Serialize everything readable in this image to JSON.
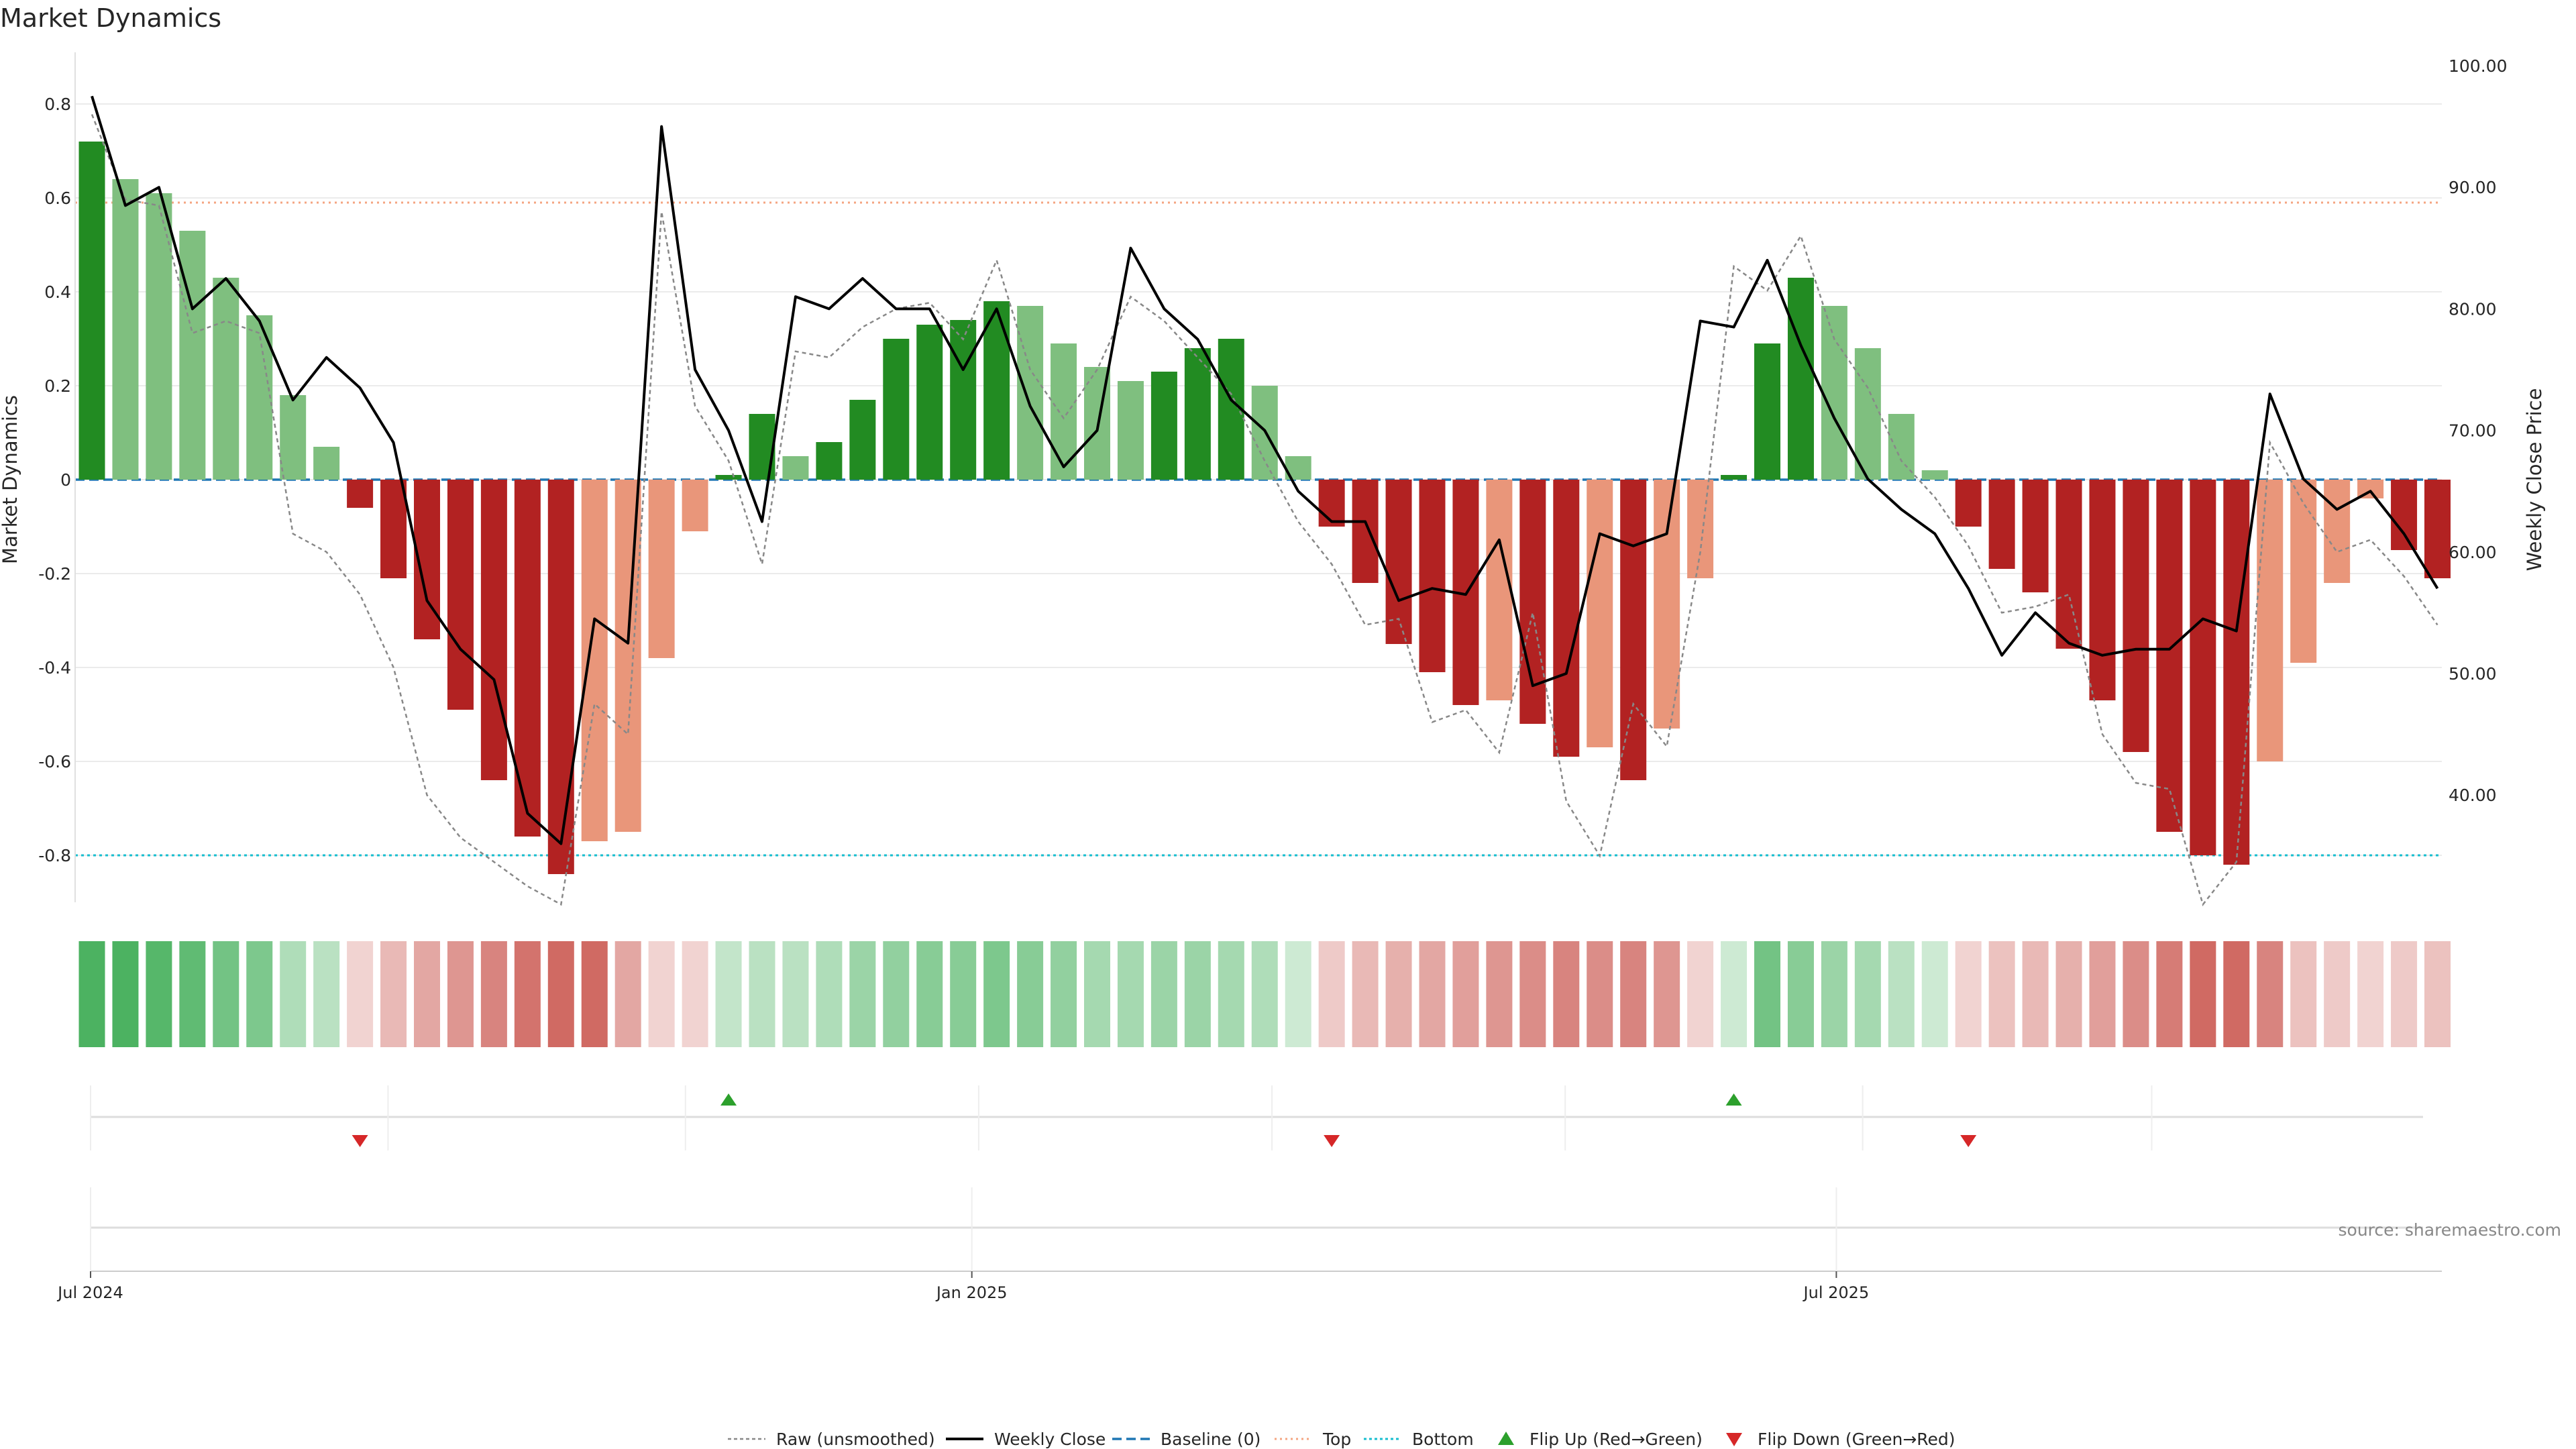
{
  "chart_data": {
    "type": "bar",
    "title": "Market Dynamics",
    "ylabel_left": "Market Dynamics",
    "ylabel_right": "Weekly Close Price",
    "source": "source: sharemaestro.com",
    "ylim_left": [
      -0.9,
      0.9
    ],
    "ylim_right": [
      31.0,
      101.0
    ],
    "yticks_left": [
      "0.8",
      "0.6",
      "0.4",
      "0.2",
      "0",
      "-0.2",
      "-0.4",
      "-0.6",
      "-0.8"
    ],
    "yticks_left_values": [
      0.8,
      0.6,
      0.4,
      0.2,
      0,
      -0.2,
      -0.4,
      -0.6,
      -0.8
    ],
    "yticks_right": [
      "100.00",
      "90.00",
      "80.00",
      "70.00",
      "60.00",
      "50.00",
      "40.00"
    ],
    "yticks_right_values": [
      100,
      90,
      80,
      70,
      60,
      50,
      40
    ],
    "xticks": [
      {
        "label": "Jul 2024",
        "index": 0
      },
      {
        "label": "Jan 2025",
        "index": 26.3
      },
      {
        "label": "Jul 2025",
        "index": 52.1
      }
    ],
    "reference_lines": {
      "baseline": 0,
      "top": 0.59,
      "bottom": -0.8
    },
    "bar_values": [
      0.72,
      0.64,
      0.61,
      0.53,
      0.43,
      0.35,
      0.18,
      0.07,
      -0.06,
      -0.21,
      -0.34,
      -0.49,
      -0.64,
      -0.76,
      -0.84,
      -0.77,
      -0.75,
      -0.38,
      -0.11,
      0.01,
      0.14,
      0.05,
      0.08,
      0.17,
      0.3,
      0.33,
      0.34,
      0.38,
      0.37,
      0.29,
      0.24,
      0.21,
      0.23,
      0.28,
      0.3,
      0.2,
      0.05,
      -0.1,
      -0.22,
      -0.35,
      -0.41,
      -0.48,
      -0.47,
      -0.52,
      -0.59,
      -0.57,
      -0.64,
      -0.53,
      -0.21,
      0.01,
      0.29,
      0.43,
      0.37,
      0.28,
      0.14,
      0.02,
      -0.1,
      -0.19,
      -0.24,
      -0.36,
      -0.47,
      -0.58,
      -0.75,
      -0.8,
      -0.82,
      -0.6,
      -0.39,
      -0.22,
      -0.04,
      -0.15,
      -0.21
    ],
    "bar_strength": [
      "strong",
      "weak",
      "weak",
      "weak",
      "weak",
      "weak",
      "weak",
      "weak",
      "strong",
      "strong",
      "strong",
      "strong",
      "strong",
      "strong",
      "strong",
      "weak",
      "weak",
      "weak",
      "weak",
      "strong",
      "strong",
      "weak",
      "strong",
      "strong",
      "strong",
      "strong",
      "strong",
      "strong",
      "weak",
      "weak",
      "weak",
      "weak",
      "strong",
      "strong",
      "strong",
      "weak",
      "weak",
      "strong",
      "strong",
      "strong",
      "strong",
      "strong",
      "weak",
      "strong",
      "strong",
      "weak",
      "strong",
      "weak",
      "weak",
      "strong",
      "strong",
      "strong",
      "weak",
      "weak",
      "weak",
      "weak",
      "strong",
      "strong",
      "strong",
      "strong",
      "strong",
      "strong",
      "strong",
      "strong",
      "strong",
      "weak",
      "weak",
      "weak",
      "weak",
      "strong",
      "strong"
    ],
    "weekly_close": [
      97.5,
      88.5,
      90.0,
      80.0,
      82.5,
      79.0,
      72.5,
      76.0,
      73.5,
      69.0,
      56.0,
      52.0,
      49.5,
      38.5,
      36.0,
      54.5,
      52.5,
      95.0,
      75.0,
      70.0,
      62.5,
      81.0,
      80.0,
      82.5,
      80.0,
      80.0,
      75.0,
      80.0,
      72.0,
      67.0,
      70.0,
      85.0,
      80.0,
      77.5,
      72.5,
      70.0,
      65.0,
      62.5,
      62.5,
      56.0,
      57.0,
      56.5,
      61.0,
      49.0,
      50.0,
      61.5,
      60.5,
      61.5,
      79.0,
      78.5,
      84.0,
      77.0,
      71.0,
      66.0,
      63.5,
      61.5,
      57.0,
      51.5,
      55.0,
      52.5,
      51.5,
      52.0,
      52.0,
      54.5,
      53.5,
      73.0,
      66.0,
      63.5,
      65.0,
      61.5,
      57.0
    ],
    "raw_unsmoothed": [
      96.0,
      89.0,
      88.5,
      78.0,
      79.0,
      78.0,
      61.5,
      60.0,
      56.5,
      50.5,
      40.0,
      36.5,
      34.5,
      32.5,
      31.0,
      47.5,
      45.0,
      88.0,
      72.0,
      67.5,
      59.0,
      76.5,
      76.0,
      78.5,
      80.0,
      80.5,
      77.5,
      84.0,
      75.0,
      71.0,
      75.0,
      81.0,
      79.0,
      76.0,
      73.0,
      67.5,
      62.5,
      59.0,
      54.0,
      54.5,
      46.0,
      47.0,
      43.5,
      55.0,
      39.5,
      35.0,
      47.5,
      44.0,
      60.0,
      83.5,
      81.5,
      86.0,
      77.5,
      73.5,
      67.5,
      64.5,
      60.5,
      55.0,
      55.5,
      56.5,
      45.0,
      41.0,
      40.5,
      31.0,
      34.5,
      69.0,
      64.0,
      60.0,
      61.0,
      58.0,
      54.0
    ],
    "strip_intensity": [
      0.9,
      0.9,
      0.85,
      0.8,
      0.7,
      0.65,
      0.4,
      0.35,
      0.25,
      0.4,
      0.5,
      0.6,
      0.7,
      0.8,
      0.85,
      0.85,
      0.5,
      0.25,
      0.25,
      0.3,
      0.35,
      0.35,
      0.4,
      0.5,
      0.55,
      0.6,
      0.6,
      0.65,
      0.6,
      0.55,
      0.45,
      0.45,
      0.5,
      0.5,
      0.45,
      0.4,
      0.25,
      0.3,
      0.4,
      0.45,
      0.5,
      0.55,
      0.6,
      0.65,
      0.7,
      0.65,
      0.7,
      0.6,
      0.25,
      0.25,
      0.7,
      0.6,
      0.5,
      0.45,
      0.35,
      0.25,
      0.25,
      0.35,
      0.4,
      0.45,
      0.55,
      0.65,
      0.75,
      0.85,
      0.85,
      0.7,
      0.35,
      0.3,
      0.25,
      0.3,
      0.35
    ],
    "flip_up_indices": [
      19,
      49
    ],
    "flip_down_indices": [
      8,
      37,
      56
    ],
    "colors": {
      "strong_green": "#228b22",
      "weak_green": "#7fbf7f",
      "strong_red": "#b22222",
      "weak_red": "#e9967a",
      "baseline": "#1f77b4",
      "top": "#f4a582",
      "bottom": "#17becf",
      "close_line": "#000000",
      "raw_line": "#888888",
      "flip_up": "#2ca02c",
      "flip_down": "#d62728"
    },
    "legend": {
      "raw": "Raw (unsmoothed)",
      "close": "Weekly Close",
      "baseline": "Baseline (0)",
      "top": "Top",
      "bottom": "Bottom",
      "flip_up": "Flip Up (Red→Green)",
      "flip_down": "Flip Down (Green→Red)"
    }
  }
}
